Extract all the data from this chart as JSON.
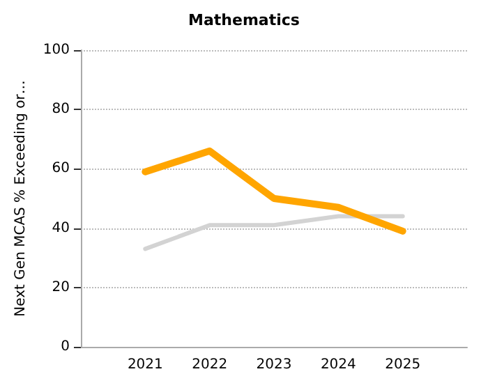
{
  "chart_data": {
    "type": "line",
    "title": "Mathematics",
    "ylabel": "Next Gen MCAS % Exceeding or…",
    "categories": [
      null,
      "2021",
      "2022",
      "2023",
      "2024",
      "2025",
      null
    ],
    "series": [
      {
        "color": "#d3d3d3",
        "values": [
          null,
          33,
          41,
          41,
          44,
          44,
          null
        ]
      },
      {
        "color": "#ffa500",
        "values": [
          null,
          59,
          66,
          50,
          47,
          39,
          null
        ]
      }
    ],
    "ylim": [
      0,
      100
    ],
    "yticks": [
      0,
      20,
      40,
      60,
      80,
      100
    ],
    "grid": "y",
    "marker": "none",
    "line_style": "solid"
  }
}
